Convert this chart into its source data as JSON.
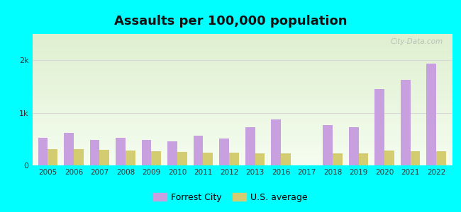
{
  "title": "Assaults per 100,000 population",
  "title_fontsize": 13,
  "background_outer": "#00FFFF",
  "years": [
    2005,
    2006,
    2007,
    2008,
    2009,
    2010,
    2011,
    2012,
    2013,
    2016,
    2017,
    2018,
    2019,
    2020,
    2021,
    2022
  ],
  "forrest_city": [
    530,
    620,
    480,
    520,
    490,
    460,
    570,
    510,
    720,
    880,
    0,
    770,
    730,
    1450,
    1620,
    1940
  ],
  "us_average": [
    310,
    310,
    290,
    285,
    265,
    255,
    240,
    240,
    225,
    235,
    0,
    235,
    235,
    280,
    265,
    270
  ],
  "forrest_city_color": "#c8a0e0",
  "us_average_color": "#d4cc70",
  "forrest_city_label": "Forrest City",
  "us_average_label": "U.S. average",
  "ylim": [
    0,
    2500
  ],
  "yticks": [
    0,
    1000,
    2000
  ],
  "ytick_labels": [
    "0",
    "1k",
    "2k"
  ],
  "grid_color": "#d8d8d8",
  "bar_width": 0.38,
  "watermark": "City-Data.com",
  "bg_top": "#f5fdf0",
  "bg_bottom": "#dff0d0"
}
